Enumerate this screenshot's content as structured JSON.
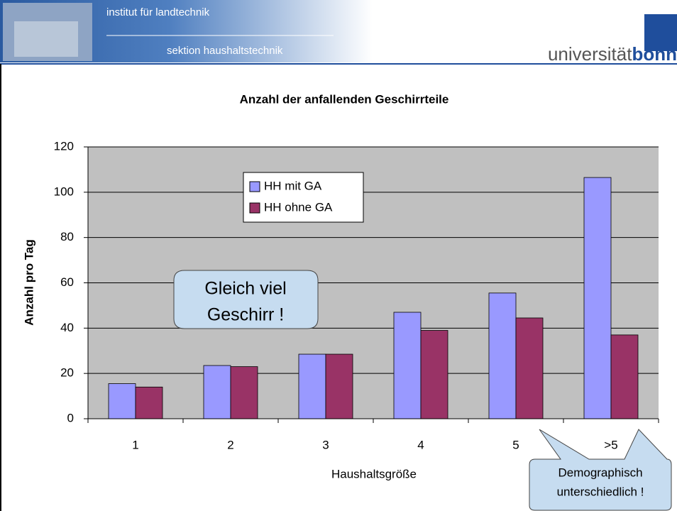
{
  "header": {
    "institute": "institut für landtechnik",
    "section": "sektion haushaltstechnik",
    "logo_left": "universität",
    "logo_right": "bonn"
  },
  "chart_data": {
    "type": "bar",
    "title": "Anzahl der anfallenden Geschirrteile",
    "x_label": "Haushaltsgröße",
    "y_label": "Anzahl pro Tag",
    "categories": [
      "1",
      "2",
      "3",
      "4",
      "5",
      ">5"
    ],
    "series": [
      {
        "name": "HH mit GA",
        "color": "#9999ff",
        "values": [
          15.5,
          23.5,
          28.5,
          47,
          55.5,
          106.5
        ]
      },
      {
        "name": "HH ohne GA",
        "color": "#993366",
        "values": [
          14,
          23,
          28.5,
          39,
          44.5,
          37
        ]
      }
    ],
    "ylim": [
      0,
      120
    ],
    "yticks": [
      0,
      20,
      40,
      60,
      80,
      100,
      120
    ],
    "grid": true,
    "legend": "top-center",
    "annotations": [
      [
        "Gleich viel",
        "Geschirr !"
      ],
      [
        "Demographisch",
        "unterschiedlich !"
      ]
    ]
  }
}
